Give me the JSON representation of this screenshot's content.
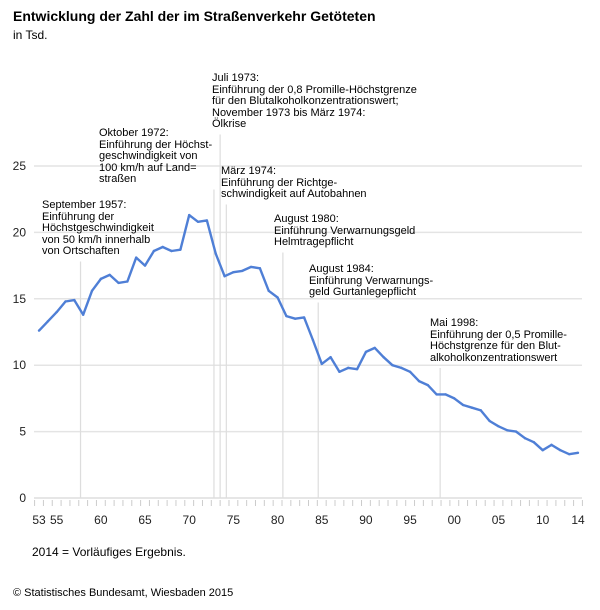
{
  "chart_data": {
    "type": "line",
    "title": "Entwicklung der Zahl der im Straßenverkehr Getöteten",
    "subtitle": "in Tsd.",
    "xlabel": "",
    "ylabel": "",
    "ylim": [
      0,
      27
    ],
    "xlim": [
      1953,
      2014
    ],
    "grid": true,
    "yticks": [
      0,
      5,
      10,
      15,
      20,
      25
    ],
    "xtick_labels": [
      {
        "year": 1953,
        "label": "53"
      },
      {
        "year": 1955,
        "label": "55"
      },
      {
        "year": 1960,
        "label": "60"
      },
      {
        "year": 1965,
        "label": "65"
      },
      {
        "year": 1970,
        "label": "70"
      },
      {
        "year": 1975,
        "label": "75"
      },
      {
        "year": 1980,
        "label": "80"
      },
      {
        "year": 1985,
        "label": "85"
      },
      {
        "year": 1990,
        "label": "90"
      },
      {
        "year": 1995,
        "label": "95"
      },
      {
        "year": 2000,
        "label": "00"
      },
      {
        "year": 2005,
        "label": "05"
      },
      {
        "year": 2010,
        "label": "10"
      },
      {
        "year": 2014,
        "label": "14"
      }
    ],
    "series": [
      {
        "name": "Getötete (Tsd.)",
        "color": "#4f7fd6",
        "x": [
          1953,
          1954,
          1955,
          1956,
          1957,
          1958,
          1959,
          1960,
          1961,
          1962,
          1963,
          1964,
          1965,
          1966,
          1967,
          1968,
          1969,
          1970,
          1971,
          1972,
          1973,
          1974,
          1975,
          1976,
          1977,
          1978,
          1979,
          1980,
          1981,
          1982,
          1983,
          1984,
          1985,
          1986,
          1987,
          1988,
          1989,
          1990,
          1991,
          1992,
          1993,
          1994,
          1995,
          1996,
          1997,
          1998,
          1999,
          2000,
          2001,
          2002,
          2003,
          2004,
          2005,
          2006,
          2007,
          2008,
          2009,
          2010,
          2011,
          2012,
          2013,
          2014
        ],
        "values": [
          12.6,
          13.3,
          14.0,
          14.8,
          14.9,
          13.8,
          15.6,
          16.5,
          16.8,
          16.2,
          16.3,
          18.1,
          17.5,
          18.6,
          18.9,
          18.6,
          18.7,
          21.3,
          20.8,
          20.9,
          18.4,
          16.7,
          17.0,
          17.1,
          17.4,
          17.3,
          15.6,
          15.1,
          13.7,
          13.5,
          13.6,
          11.9,
          10.1,
          10.6,
          9.5,
          9.8,
          9.7,
          11.0,
          11.3,
          10.6,
          10.0,
          9.8,
          9.5,
          8.8,
          8.5,
          7.8,
          7.8,
          7.5,
          7.0,
          6.8,
          6.6,
          5.8,
          5.4,
          5.1,
          5.0,
          4.5,
          4.2,
          3.6,
          4.0,
          3.6,
          3.3,
          3.4
        ]
      }
    ],
    "annotations": [
      {
        "year": 1957.7,
        "text": "September 1957:\nEinführung der\nHöchstgeschwindigkeit\nvon 50 km/h innerhalb\nvon Ortschaften"
      },
      {
        "year": 1972.8,
        "text": "Oktober 1972:\nEinführung der Höchst-\ngeschwindigkeit von\n100 km/h auf Land=\nstraßen"
      },
      {
        "year": 1973.5,
        "text": "Juli 1973:\nEinführung der 0,8 Promille-Höchstgrenze\nfür den Blutalkoholkonzentrationswert;\nNovember 1973 bis März 1974:\nÖlkrise"
      },
      {
        "year": 1974.2,
        "text": "März 1974:\nEinführung der Richtge-\nschwindigkeit auf Autobahnen"
      },
      {
        "year": 1980.6,
        "text": "August 1980:\nEinführung Verwarnungsgeld\nHelmtragepflicht"
      },
      {
        "year": 1984.6,
        "text": "August 1984:\nEinführung Verwarnungs-\ngeld Gurtanlegepflicht"
      },
      {
        "year": 1998.4,
        "text": "Mai 1998:\nEinführung der 0,5 Promille-\nHöchstgrenze für den Blut-\nalkoholkonzentrationswert"
      }
    ],
    "footnote": "2014 = Vorläufiges Ergebnis.",
    "source": "© Statistisches Bundesamt, Wiesbaden 2015"
  }
}
